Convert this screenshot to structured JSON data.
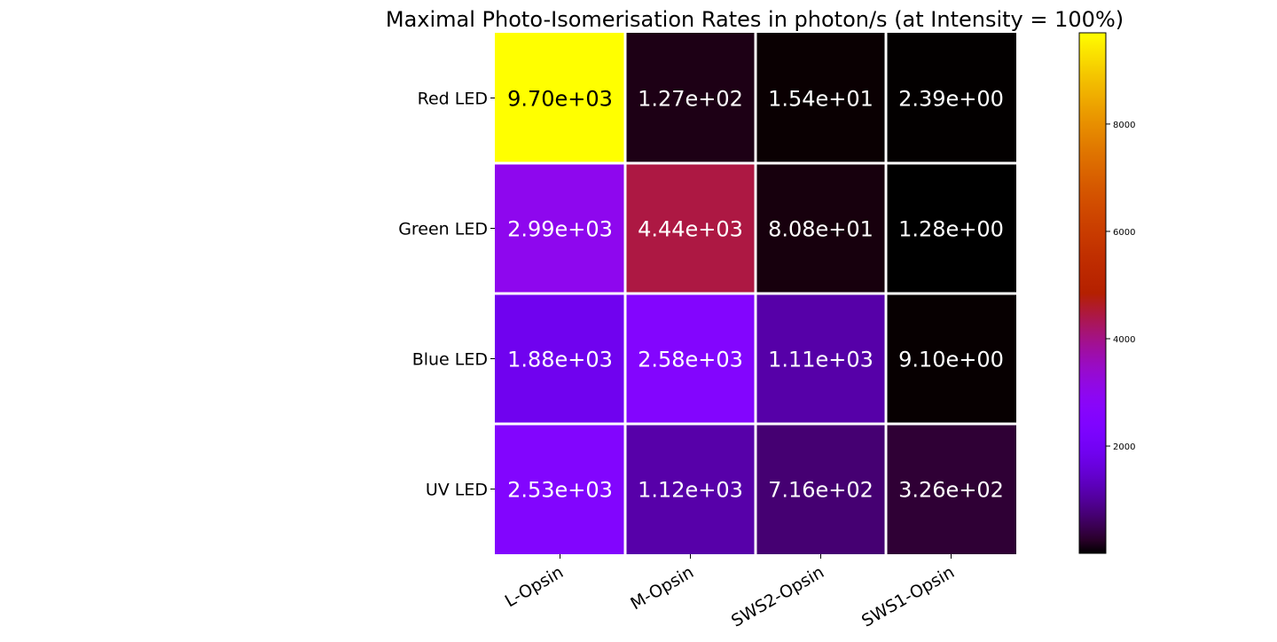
{
  "chart_data": {
    "type": "heatmap",
    "title": "Maximal Photo-Isomerisation Rates in photon/s (at Intensity = 100%)",
    "xlabel": "",
    "ylabel": "",
    "x_categories": [
      "L-Opsin",
      "M-Opsin",
      "SWS2-Opsin",
      "SWS1-Opsin"
    ],
    "y_categories": [
      "Red LED",
      "Green LED",
      "Blue LED",
      "UV LED"
    ],
    "values": [
      [
        9700,
        127,
        15.4,
        2.39
      ],
      [
        2990,
        4440,
        80.8,
        1.28
      ],
      [
        1880,
        2580,
        1110,
        9.1
      ],
      [
        2530,
        1120,
        716,
        326
      ]
    ],
    "cell_labels": [
      [
        "9.70e+03",
        "1.27e+02",
        "1.54e+01",
        "2.39e+00"
      ],
      [
        "2.99e+03",
        "4.44e+03",
        "8.08e+01",
        "1.28e+00"
      ],
      [
        "1.88e+03",
        "2.58e+03",
        "1.11e+03",
        "9.10e+00"
      ],
      [
        "2.53e+03",
        "1.12e+03",
        "7.16e+02",
        "3.26e+02"
      ]
    ],
    "colormap": "gnuplot",
    "color_range": [
      1.28,
      9700
    ],
    "colorbar_ticks": [
      2000,
      4000,
      6000,
      8000
    ],
    "colorbar_tick_labels": [
      "2000",
      "4000",
      "6000",
      "8000"
    ],
    "grid_lines": true,
    "grid_color": "#ffffff"
  }
}
